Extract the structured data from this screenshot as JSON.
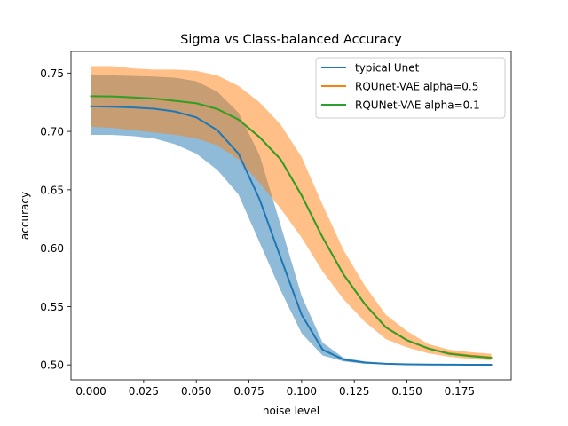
{
  "chart_data": {
    "type": "line",
    "title": "Sigma vs Class-balanced Accuracy",
    "xlabel": "noise level",
    "ylabel": "accuracy",
    "xlim": [
      -0.0095,
      0.1995
    ],
    "ylim": [
      0.4872,
      0.7685
    ],
    "xticks": [
      0.0,
      0.025,
      0.05,
      0.075,
      0.1,
      0.125,
      0.15,
      0.175
    ],
    "xtick_labels": [
      "0.000",
      "0.025",
      "0.050",
      "0.075",
      "0.100",
      "0.125",
      "0.150",
      "0.175"
    ],
    "yticks": [
      0.5,
      0.55,
      0.6,
      0.65,
      0.7,
      0.75
    ],
    "ytick_labels": [
      "0.50",
      "0.55",
      "0.60",
      "0.65",
      "0.70",
      "0.75"
    ],
    "legend_position": "upper right",
    "x": [
      0.0,
      0.01,
      0.02,
      0.03,
      0.04,
      0.05,
      0.06,
      0.07,
      0.08,
      0.09,
      0.1,
      0.11,
      0.12,
      0.13,
      0.14,
      0.15,
      0.16,
      0.17,
      0.18,
      0.19
    ],
    "series": [
      {
        "name": "typical Unet",
        "color": "#1f77b4",
        "values": [
          0.7215,
          0.7212,
          0.7205,
          0.7195,
          0.717,
          0.712,
          0.701,
          0.681,
          0.642,
          0.592,
          0.543,
          0.513,
          0.5045,
          0.502,
          0.501,
          0.5005,
          0.5003,
          0.5002,
          0.5001,
          0.5001
        ],
        "lower": [
          0.697,
          0.697,
          0.696,
          0.694,
          0.689,
          0.681,
          0.667,
          0.646,
          0.605,
          0.564,
          0.527,
          0.508,
          0.503,
          0.501,
          0.5005,
          0.5003,
          0.5002,
          0.5001,
          0.5001,
          0.5
        ],
        "upper": [
          0.748,
          0.748,
          0.7475,
          0.747,
          0.746,
          0.743,
          0.734,
          0.716,
          0.68,
          0.62,
          0.559,
          0.519,
          0.506,
          0.503,
          0.5015,
          0.5008,
          0.5005,
          0.5003,
          0.5002,
          0.5002
        ],
        "band_color": "#1f77b4",
        "band_opacity": 0.5
      },
      {
        "name": "RQUnet-VAE alpha=0.5",
        "color": "#ff7f0e",
        "values": [
          0.73,
          0.73,
          0.729,
          0.728,
          0.726,
          0.724,
          0.719,
          0.71,
          0.695,
          0.676,
          0.645,
          0.609,
          0.577,
          0.552,
          0.532,
          0.521,
          0.514,
          0.51,
          0.508,
          0.5065
        ],
        "lower": [
          0.704,
          0.703,
          0.701,
          0.699,
          0.697,
          0.694,
          0.688,
          0.676,
          0.656,
          0.634,
          0.609,
          0.58,
          0.556,
          0.537,
          0.522,
          0.515,
          0.51,
          0.507,
          0.505,
          0.504
        ],
        "upper": [
          0.756,
          0.756,
          0.754,
          0.753,
          0.753,
          0.752,
          0.748,
          0.739,
          0.725,
          0.706,
          0.678,
          0.637,
          0.598,
          0.568,
          0.543,
          0.529,
          0.518,
          0.513,
          0.511,
          0.5095
        ],
        "band_color": "#ff7f0e",
        "band_opacity": 0.5
      },
      {
        "name": "RQUNet-VAE alpha=0.1",
        "color": "#2ca02c",
        "values": [
          0.7302,
          0.73,
          0.7292,
          0.7282,
          0.7262,
          0.7242,
          0.7192,
          0.7102,
          0.6952,
          0.6762,
          0.6452,
          0.6092,
          0.5772,
          0.5522,
          0.5322,
          0.5212,
          0.5142,
          0.5095,
          0.5075,
          0.506
        ]
      }
    ]
  }
}
